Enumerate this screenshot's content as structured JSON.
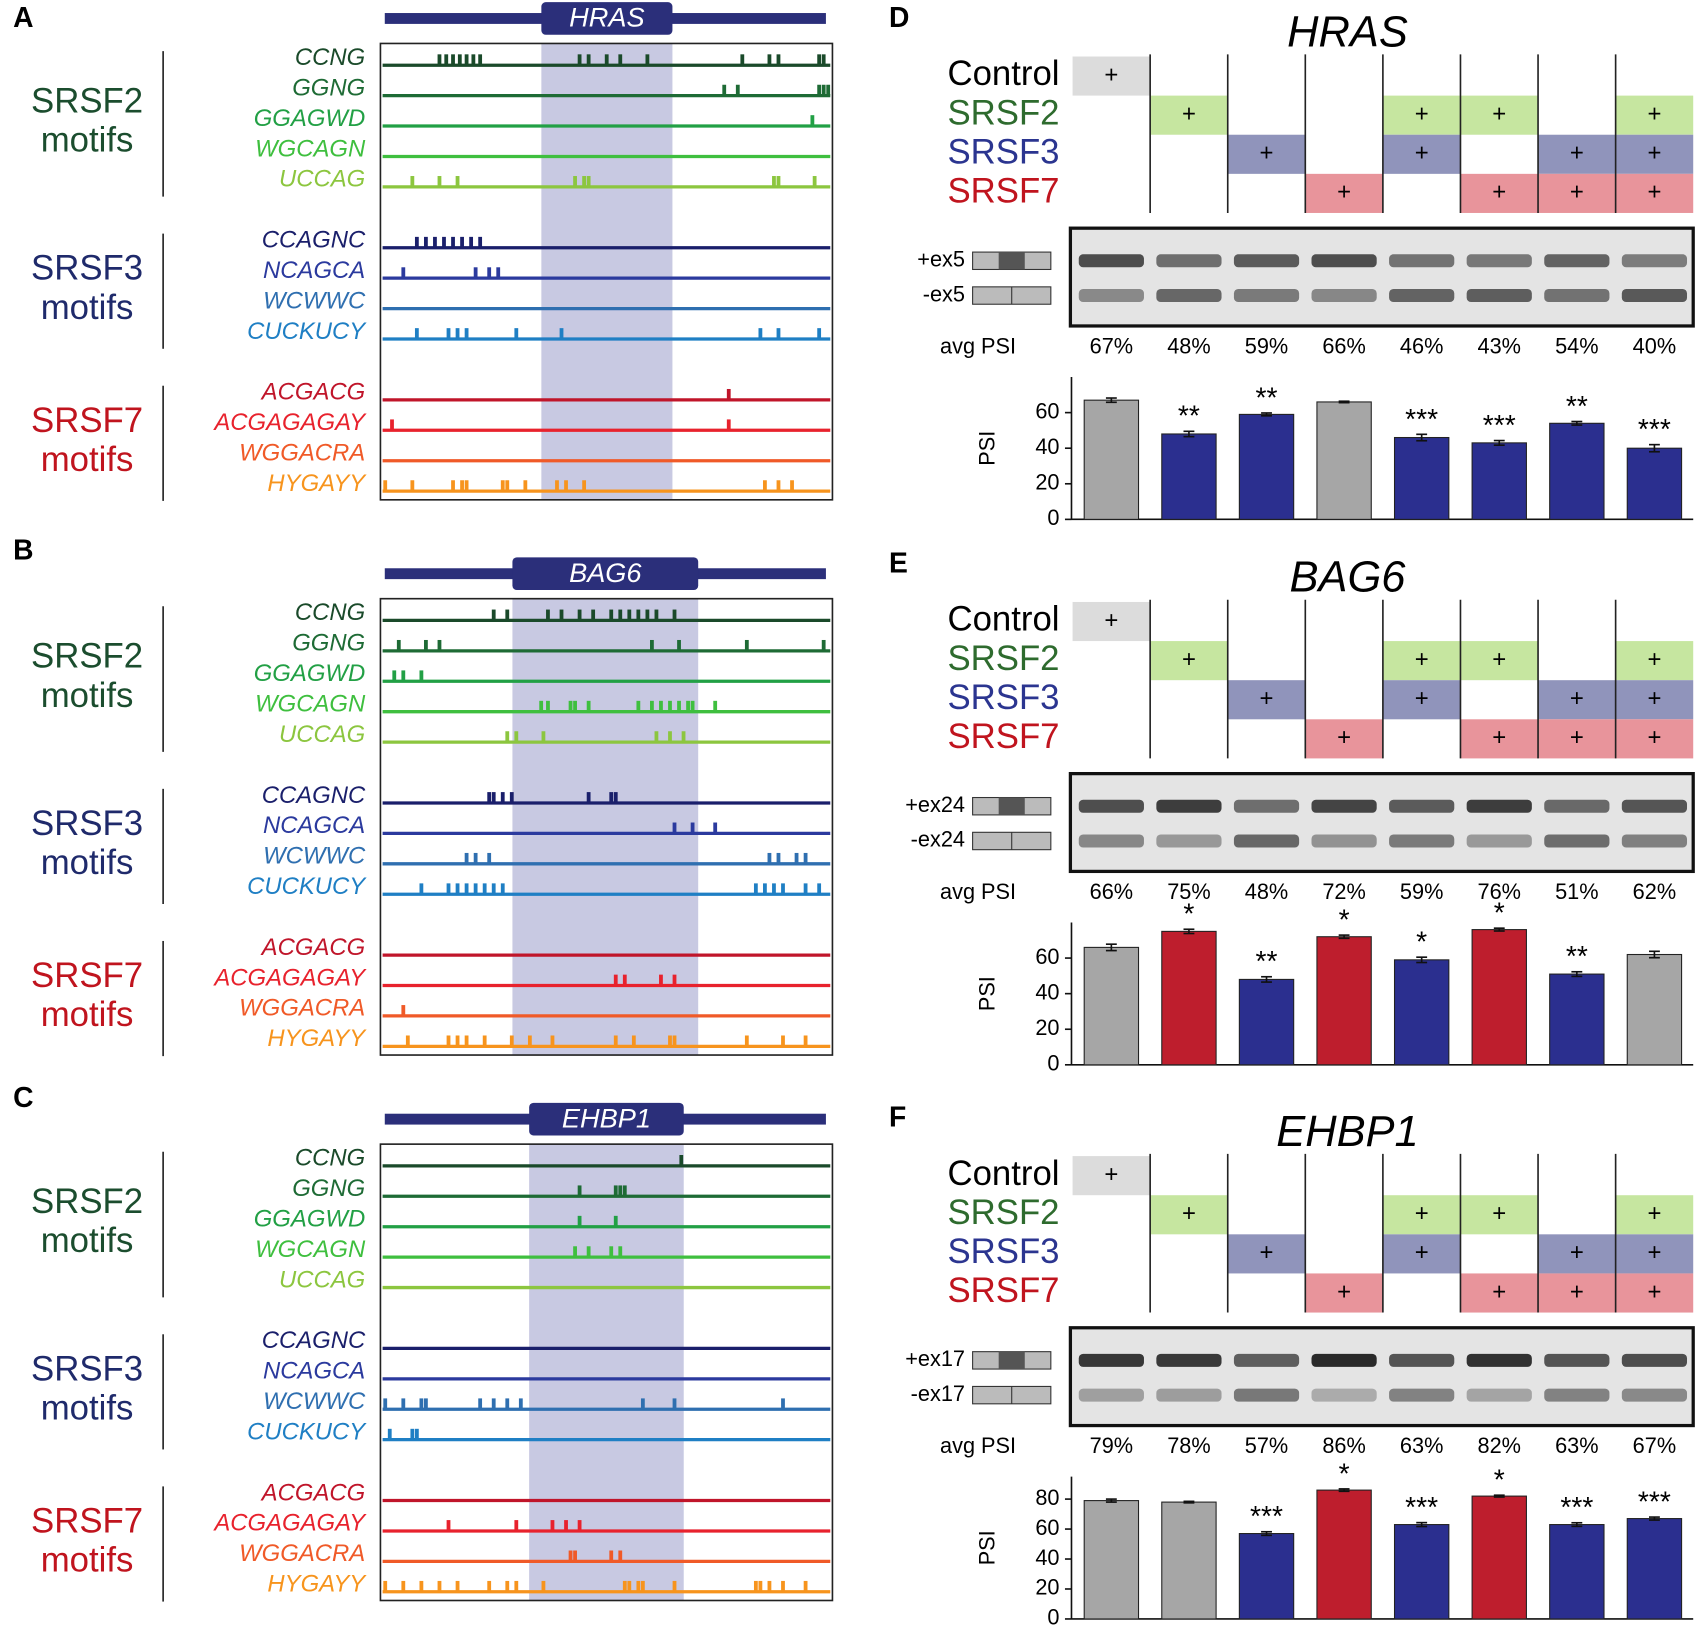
{
  "motif_panels": [
    {
      "label": "A",
      "gene": "HRAS",
      "exon": [
        35.6,
        64.6
      ],
      "groups": [
        {
          "lines": [
            "SRSF2",
            "motifs"
          ],
          "color": "#1b4d2e",
          "tracks": [
            {
              "name": "CCNG",
              "color": "#1a4a2a",
              "hits": [
                13,
                14.5,
                16,
                17.5,
                19,
                20.5,
                22,
                44,
                46,
                50,
                53,
                59,
                80,
                86,
                88,
                97,
                98
              ]
            },
            {
              "name": "GGNG",
              "color": "#1e6b35",
              "hits": [
                76,
                79,
                97,
                98,
                99
              ]
            },
            {
              "name": "GGAGWD",
              "color": "#22a045",
              "hits": [
                95.5
              ]
            },
            {
              "name": "WGCAGN",
              "color": "#3fbf3f",
              "hits": []
            },
            {
              "name": "UCCAG",
              "color": "#8cc63f",
              "hits": [
                7,
                13,
                17,
                43,
                45,
                46,
                87,
                88,
                96
              ]
            }
          ]
        },
        {
          "lines": [
            "SRSF3",
            "motifs"
          ],
          "color": "#1f2a6b",
          "tracks": [
            {
              "name": "CCAGNC",
              "color": "#1a1f6b",
              "hits": [
                8,
                10,
                12,
                14,
                16,
                18,
                20,
                22
              ]
            },
            {
              "name": "NCAGCA",
              "color": "#2b3a9e",
              "hits": [
                5,
                21,
                24,
                26
              ]
            },
            {
              "name": "WCWWC",
              "color": "#2f6fb0",
              "hits": []
            },
            {
              "name": "CUCKUCY",
              "color": "#1f7fc4",
              "hits": [
                8,
                15,
                17,
                19,
                30,
                40,
                84,
                88,
                97
              ]
            }
          ]
        },
        {
          "lines": [
            "SRSF7",
            "motifs"
          ],
          "color": "#c0141e",
          "tracks": [
            {
              "name": "ACGACG",
              "color": "#c0152a",
              "hits": [
                77
              ]
            },
            {
              "name": "ACGAGAGAY",
              "color": "#e8222d",
              "hits": [
                2.5,
                77
              ]
            },
            {
              "name": "WGGACRA",
              "color": "#f05a28",
              "hits": []
            },
            {
              "name": "HYGAYY",
              "color": "#f7941d",
              "hits": [
                1,
                7,
                16,
                18,
                19,
                27,
                28,
                32,
                39,
                41,
                45,
                85,
                88,
                91
              ]
            }
          ]
        }
      ]
    },
    {
      "label": "B",
      "gene": "BAG6",
      "exon": [
        29.2,
        70.3
      ],
      "groups": [
        {
          "lines": [
            "SRSF2",
            "motifs"
          ],
          "color": "#1b4d2e",
          "tracks": [
            {
              "name": "CCNG",
              "color": "#1a4a2a",
              "hits": [
                25,
                28,
                37,
                40,
                44,
                47,
                51,
                53,
                55,
                57,
                59,
                61,
                65
              ]
            },
            {
              "name": "GGNG",
              "color": "#1e6b35",
              "hits": [
                4,
                10,
                13,
                60,
                66,
                81,
                98
              ]
            },
            {
              "name": "GGAGWD",
              "color": "#22a045",
              "hits": [
                3,
                5,
                9
              ]
            },
            {
              "name": "WGCAGN",
              "color": "#3fbf3f",
              "hits": [
                35.5,
                37,
                42,
                43,
                46,
                57,
                60,
                62,
                64,
                66,
                68,
                69,
                74
              ]
            },
            {
              "name": "UCCAG",
              "color": "#8cc63f",
              "hits": [
                28,
                30,
                36,
                61,
                64,
                67
              ]
            }
          ]
        },
        {
          "lines": [
            "SRSF3",
            "motifs"
          ],
          "color": "#1f2a6b",
          "tracks": [
            {
              "name": "CCAGNC",
              "color": "#1a1f6b",
              "hits": [
                24,
                25,
                27,
                29,
                46,
                51,
                52
              ]
            },
            {
              "name": "NCAGCA",
              "color": "#2b3a9e",
              "hits": [
                65,
                69,
                74
              ]
            },
            {
              "name": "WCWWC",
              "color": "#2f6fb0",
              "hits": [
                19,
                21,
                24,
                86,
                88,
                92,
                94
              ]
            },
            {
              "name": "CUCKUCY",
              "color": "#1f7fc4",
              "hits": [
                9,
                15,
                17,
                19,
                21,
                23,
                25,
                27,
                83,
                85,
                87,
                89,
                94,
                97
              ]
            }
          ]
        },
        {
          "lines": [
            "SRSF7",
            "motifs"
          ],
          "color": "#c0141e",
          "tracks": [
            {
              "name": "ACGACG",
              "color": "#c0152a",
              "hits": []
            },
            {
              "name": "ACGAGAGAY",
              "color": "#e8222d",
              "hits": [
                52,
                54,
                62,
                65
              ]
            },
            {
              "name": "WGGACRA",
              "color": "#f05a28",
              "hits": [
                5
              ]
            },
            {
              "name": "HYGAYY",
              "color": "#f7941d",
              "hits": [
                6,
                15,
                17,
                19,
                23,
                29,
                33,
                38,
                52,
                56,
                64,
                65,
                81,
                89,
                94
              ]
            }
          ]
        }
      ]
    },
    {
      "label": "C",
      "gene": "EHBP1",
      "exon": [
        32.9,
        67.1
      ],
      "groups": [
        {
          "lines": [
            "SRSF2",
            "motifs"
          ],
          "color": "#1b4d2e",
          "tracks": [
            {
              "name": "CCNG",
              "color": "#1a4a2a",
              "hits": [
                66.5
              ]
            },
            {
              "name": "GGNG",
              "color": "#1e6b35",
              "hits": [
                44,
                52,
                53,
                54
              ]
            },
            {
              "name": "GGAGWD",
              "color": "#22a045",
              "hits": [
                44,
                52
              ]
            },
            {
              "name": "WGCAGN",
              "color": "#3fbf3f",
              "hits": [
                43,
                46,
                51,
                53
              ]
            },
            {
              "name": "UCCAG",
              "color": "#8cc63f",
              "hits": []
            }
          ]
        },
        {
          "lines": [
            "SRSF3",
            "motifs"
          ],
          "color": "#1f2a6b",
          "tracks": [
            {
              "name": "CCAGNC",
              "color": "#1a1f6b",
              "hits": []
            },
            {
              "name": "NCAGCA",
              "color": "#2b3a9e",
              "hits": []
            },
            {
              "name": "WCWWC",
              "color": "#2f6fb0",
              "hits": [
                1,
                5,
                9,
                10,
                22,
                25,
                28,
                31,
                58,
                65,
                89
              ]
            },
            {
              "name": "CUCKUCY",
              "color": "#1f7fc4",
              "hits": [
                2,
                7,
                8
              ]
            }
          ]
        },
        {
          "lines": [
            "SRSF7",
            "motifs"
          ],
          "color": "#c0141e",
          "tracks": [
            {
              "name": "ACGACG",
              "color": "#c0152a",
              "hits": []
            },
            {
              "name": "ACGAGAGAY",
              "color": "#e8222d",
              "hits": [
                15,
                30,
                38,
                41,
                44
              ]
            },
            {
              "name": "WGGACRA",
              "color": "#f05a28",
              "hits": [
                42,
                43,
                51,
                53
              ]
            },
            {
              "name": "HYGAYY",
              "color": "#f7941d",
              "hits": [
                1,
                5,
                9,
                13,
                17,
                24,
                28,
                30,
                36,
                54,
                55,
                57,
                58,
                65,
                83,
                84,
                86,
                89,
                94
              ]
            }
          ]
        }
      ]
    }
  ],
  "chart_data": [
    {
      "type": "bar",
      "label": "D",
      "title": "HRAS",
      "conditions": [
        {
          "name": "Control",
          "color": "#000000",
          "fill": "#dcdcdc",
          "cells": [
            "+",
            null,
            null,
            null,
            null,
            null,
            null,
            null
          ]
        },
        {
          "name": "SRSF2",
          "color": "#2e6b2e",
          "fill": "#c6e6a0",
          "cells": [
            null,
            "+",
            null,
            null,
            "+",
            "+",
            null,
            "+"
          ]
        },
        {
          "name": "SRSF3",
          "color": "#2b3590",
          "fill": "#9094bb",
          "cells": [
            null,
            null,
            "+",
            null,
            "+",
            null,
            "+",
            "+"
          ]
        },
        {
          "name": "SRSF7",
          "color": "#c0141e",
          "fill": "#e8949b",
          "cells": [
            null,
            null,
            null,
            "+",
            null,
            "+",
            "+",
            "+"
          ]
        }
      ],
      "gel_labels": [
        "+ex5",
        "-ex5"
      ],
      "avg_label": "avg PSI",
      "y_label": "PSI",
      "values": [
        67,
        48,
        59,
        66,
        46,
        43,
        54,
        40
      ],
      "value_labels": [
        "67%",
        "48%",
        "59%",
        "66%",
        "46%",
        "43%",
        "54%",
        "40%"
      ],
      "errors": [
        1.2,
        1.5,
        0.8,
        0.4,
        1.8,
        1.3,
        1.0,
        2.0
      ],
      "significance": [
        null,
        "**",
        "**",
        null,
        "***",
        "***",
        "**",
        "***"
      ],
      "colors": [
        "#a6a6a6",
        "#2b2f8f",
        "#2b2f8f",
        "#a6a6a6",
        "#2b2f8f",
        "#2b2f8f",
        "#2b2f8f",
        "#2b2f8f"
      ],
      "ylim": [
        0,
        80
      ],
      "yticks": [
        0,
        20,
        40,
        60
      ]
    },
    {
      "type": "bar",
      "label": "E",
      "title": "BAG6",
      "conditions": [
        {
          "name": "Control",
          "color": "#000000",
          "fill": "#dcdcdc",
          "cells": [
            "+",
            null,
            null,
            null,
            null,
            null,
            null,
            null
          ]
        },
        {
          "name": "SRSF2",
          "color": "#2e6b2e",
          "fill": "#c6e6a0",
          "cells": [
            null,
            "+",
            null,
            null,
            "+",
            "+",
            null,
            "+"
          ]
        },
        {
          "name": "SRSF3",
          "color": "#2b3590",
          "fill": "#9094bb",
          "cells": [
            null,
            null,
            "+",
            null,
            "+",
            null,
            "+",
            "+"
          ]
        },
        {
          "name": "SRSF7",
          "color": "#c0141e",
          "fill": "#e8949b",
          "cells": [
            null,
            null,
            null,
            "+",
            null,
            "+",
            "+",
            "+"
          ]
        }
      ],
      "gel_labels": [
        "+ex24",
        "-ex24"
      ],
      "avg_label": "avg PSI",
      "y_label": "PSI",
      "values": [
        66,
        75,
        48,
        72,
        59,
        76,
        51,
        62
      ],
      "value_labels": [
        "66%",
        "75%",
        "48%",
        "72%",
        "59%",
        "76%",
        "51%",
        "62%"
      ],
      "errors": [
        1.8,
        1.2,
        1.5,
        0.9,
        1.5,
        0.8,
        1.3,
        1.8
      ],
      "significance": [
        null,
        "*",
        "**",
        "*",
        "*",
        "*",
        "**",
        null
      ],
      "colors": [
        "#a6a6a6",
        "#be1e2d",
        "#2b2f8f",
        "#be1e2d",
        "#2b2f8f",
        "#be1e2d",
        "#2b2f8f",
        "#a6a6a6"
      ],
      "ylim": [
        0,
        80
      ],
      "yticks": [
        0,
        20,
        40,
        60
      ]
    },
    {
      "type": "bar",
      "label": "F",
      "title": "EHBP1",
      "conditions": [
        {
          "name": "Control",
          "color": "#000000",
          "fill": "#dcdcdc",
          "cells": [
            "+",
            null,
            null,
            null,
            null,
            null,
            null,
            null
          ]
        },
        {
          "name": "SRSF2",
          "color": "#2e6b2e",
          "fill": "#c6e6a0",
          "cells": [
            null,
            "+",
            null,
            null,
            "+",
            "+",
            null,
            "+"
          ]
        },
        {
          "name": "SRSF3",
          "color": "#2b3590",
          "fill": "#9094bb",
          "cells": [
            null,
            null,
            "+",
            null,
            "+",
            null,
            "+",
            "+"
          ]
        },
        {
          "name": "SRSF7",
          "color": "#c0141e",
          "fill": "#e8949b",
          "cells": [
            null,
            null,
            null,
            "+",
            null,
            "+",
            "+",
            "+"
          ]
        }
      ],
      "gel_labels": [
        "+ex17",
        "-ex17"
      ],
      "avg_label": "avg PSI",
      "y_label": "PSI",
      "values": [
        79,
        78,
        57,
        86,
        63,
        82,
        63,
        67
      ],
      "value_labels": [
        "79%",
        "78%",
        "57%",
        "86%",
        "63%",
        "82%",
        "63%",
        "67%"
      ],
      "errors": [
        1.0,
        0.5,
        1.2,
        0.8,
        1.3,
        0.6,
        1.2,
        1.0
      ],
      "significance": [
        null,
        null,
        "***",
        "*",
        "***",
        "*",
        "***",
        "***"
      ],
      "colors": [
        "#a6a6a6",
        "#a6a6a6",
        "#2b2f8f",
        "#be1e2d",
        "#2b2f8f",
        "#be1e2d",
        "#2b2f8f",
        "#2b2f8f"
      ],
      "ylim": [
        0,
        95
      ],
      "yticks": [
        0,
        20,
        40,
        60,
        80
      ]
    }
  ]
}
